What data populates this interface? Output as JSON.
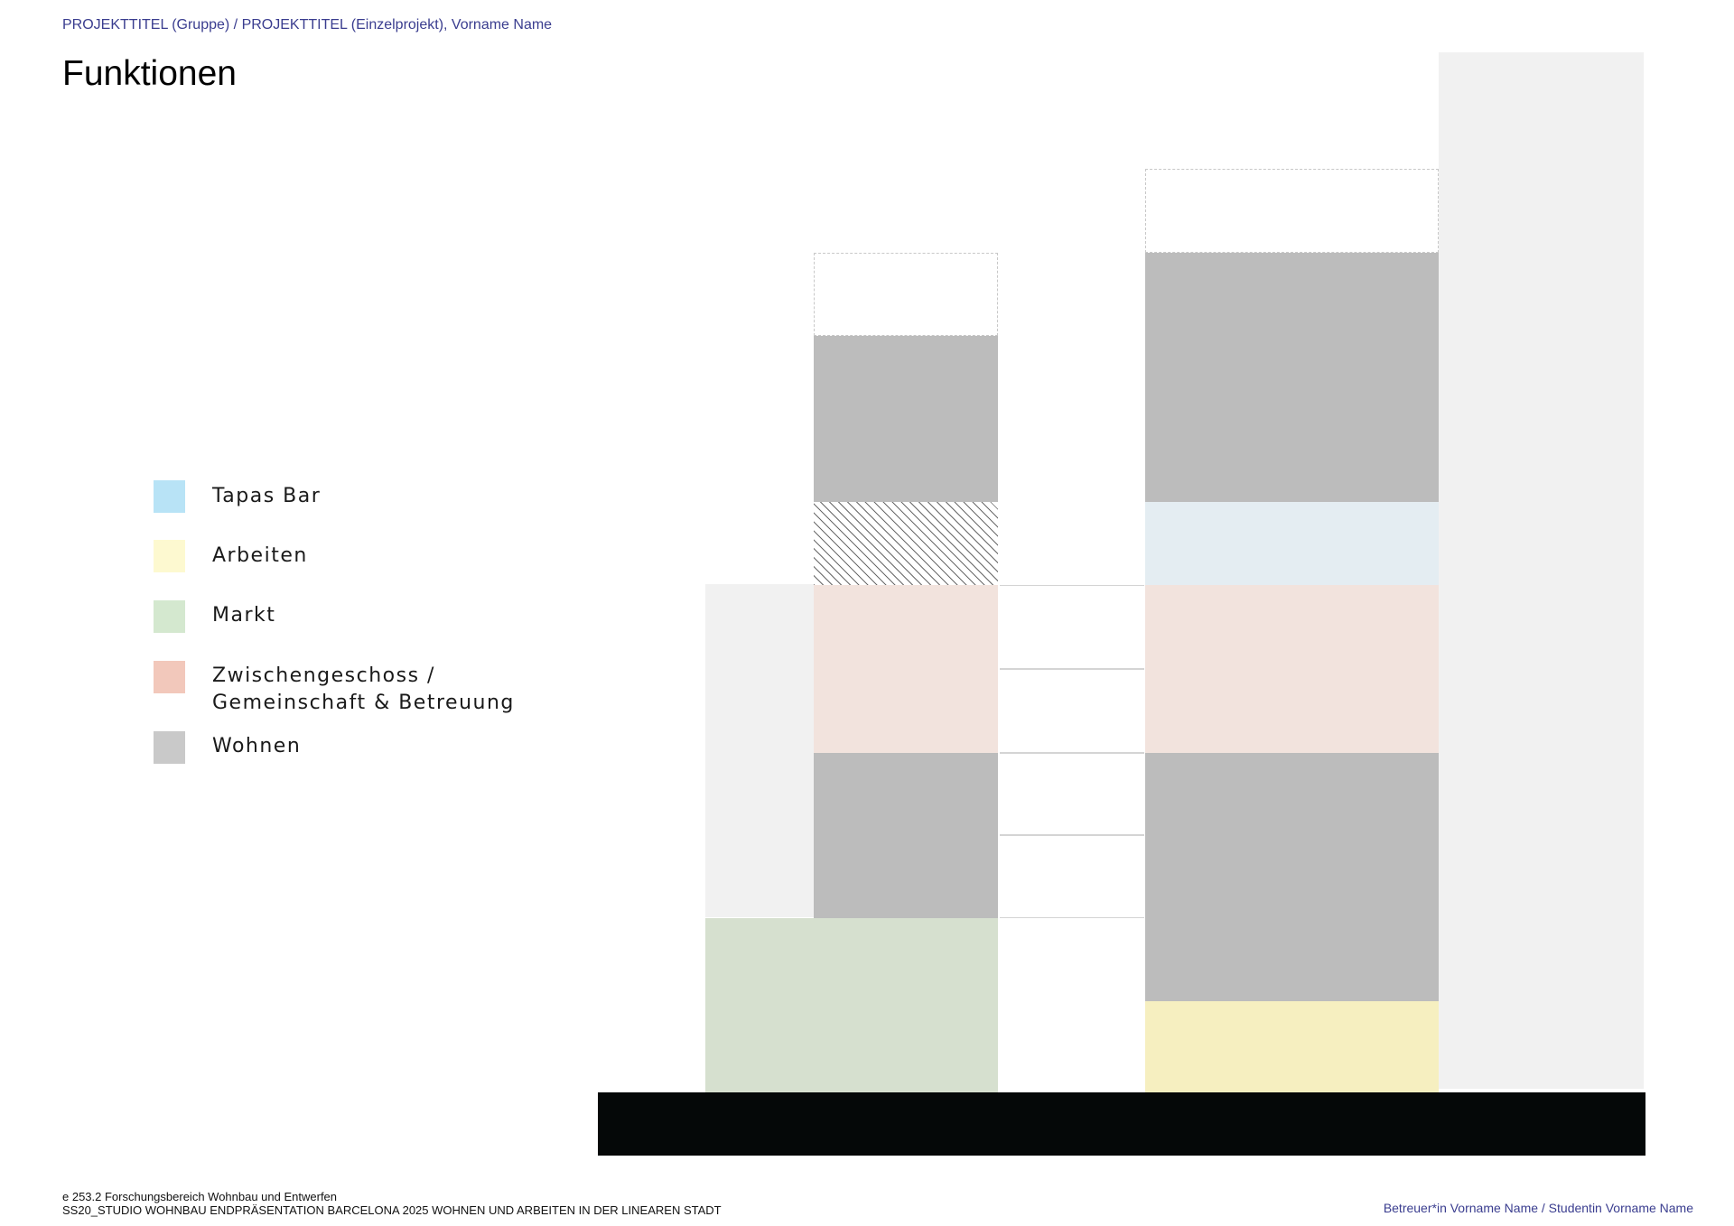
{
  "header": {
    "project_line": "PROJEKTTITEL (Gruppe) / PROJEKTTITEL (Einzelprojekt), Vorname Name",
    "title": "Funktionen"
  },
  "legend": [
    {
      "label": "Tapas Bar",
      "color": "#b8e3f6"
    },
    {
      "label": "Arbeiten",
      "color": "#fdf9d0"
    },
    {
      "label": "Markt",
      "color": "#d4e8cf"
    },
    {
      "label_line1": "Zwischengeschoss /",
      "label_line2": "Gemeinschaft & Betreuung",
      "color": "#f2c8bb"
    },
    {
      "label": "Wohnen",
      "color": "#c9c9c9"
    }
  ],
  "diagram_colors": {
    "wohnen": "#bcbcbc",
    "zwischengeschoss": "#f2e3dd",
    "tapas_bar": "#e4edf2",
    "markt": "#d6e0cf",
    "arbeiten": "#f6efc0",
    "context": "#f1f1f1",
    "ground": "#050808"
  },
  "footer": {
    "line1": "e 253.2 Forschungsbereich Wohnbau und Entwerfen",
    "line2": "SS20_STUDIO WOHNBAU ENDPRÄSENTATION BARCELONA 2025 WOHNEN UND ARBEITEN IN DER LINEAREN STADT",
    "credits": "Betreuer*in Vorname Name / Studentin Vorname Name"
  }
}
